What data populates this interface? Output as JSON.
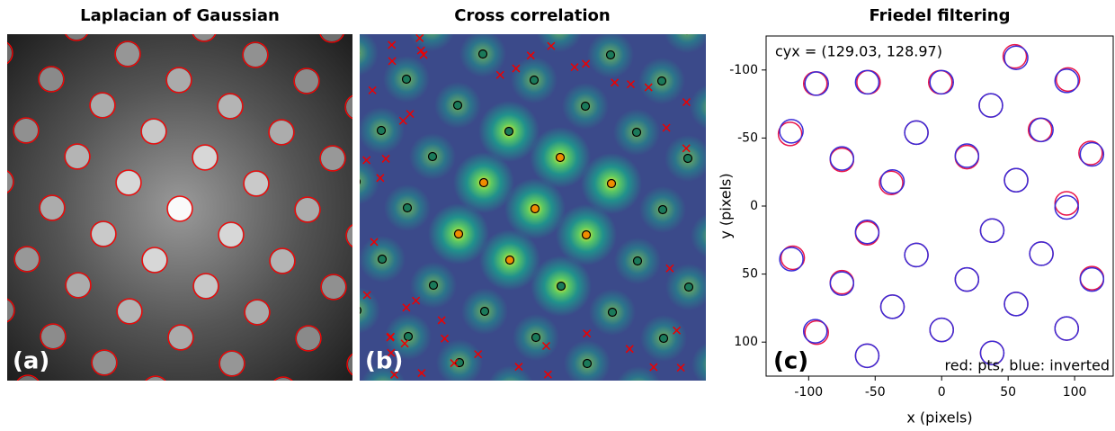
{
  "chart_data": [
    {
      "type": "image",
      "title": "Laplacian of Gaussian",
      "panel_label": "(a)"
    },
    {
      "type": "image",
      "title": "Cross correlation",
      "panel_label": "(b)"
    },
    {
      "type": "scatter",
      "title": "Friedel filtering",
      "panel_label": "(c)",
      "xlabel": "x (pixels)",
      "ylabel": "y (pixels)",
      "xlim": [
        -132,
        129
      ],
      "ylim": [
        125,
        -125
      ],
      "y_inverted": true,
      "xticks": [
        -100,
        -50,
        0,
        50,
        100
      ],
      "yticks": [
        -100,
        -50,
        0,
        50,
        100
      ],
      "annotations": [
        "cyx = (129.03, 128.97)",
        "red: pts, blue: inverted"
      ],
      "series": [
        {
          "name": "pts",
          "color": "#e8154a",
          "x": [
            55,
            -55,
            95,
            -95,
            -1,
            37,
            -114,
            -19,
            74,
            -75,
            19,
            112,
            -38,
            56,
            94,
            -56,
            38,
            -112,
            -19,
            75,
            -75,
            19,
            113,
            -37,
            56,
            -94,
            0,
            94,
            -56,
            38
          ],
          "y": [
            -110,
            -91,
            -93,
            -90,
            -91,
            -74,
            -53,
            -54,
            -56,
            -34,
            -36,
            -39,
            -17,
            -19,
            -2,
            20,
            18,
            38,
            36,
            35,
            56,
            54,
            53,
            74,
            72,
            93,
            91,
            90,
            110,
            108
          ]
        },
        {
          "name": "inverted",
          "color": "#3a2bd6",
          "x": [
            56,
            -56,
            94,
            -94,
            0,
            37,
            -113,
            -19,
            75,
            -75,
            19,
            113,
            -37,
            56,
            94,
            -56,
            38,
            -113,
            -19,
            75,
            -75,
            19,
            113,
            -37,
            56,
            -95,
            0,
            94,
            -56,
            38
          ],
          "y": [
            -109,
            -91,
            -92,
            -90,
            -91,
            -74,
            -55,
            -54,
            -56,
            -35,
            -37,
            -38,
            -18,
            -19,
            1,
            19,
            18,
            39,
            36,
            35,
            57,
            54,
            54,
            74,
            72,
            92,
            91,
            90,
            110,
            108
          ]
        }
      ]
    }
  ]
}
